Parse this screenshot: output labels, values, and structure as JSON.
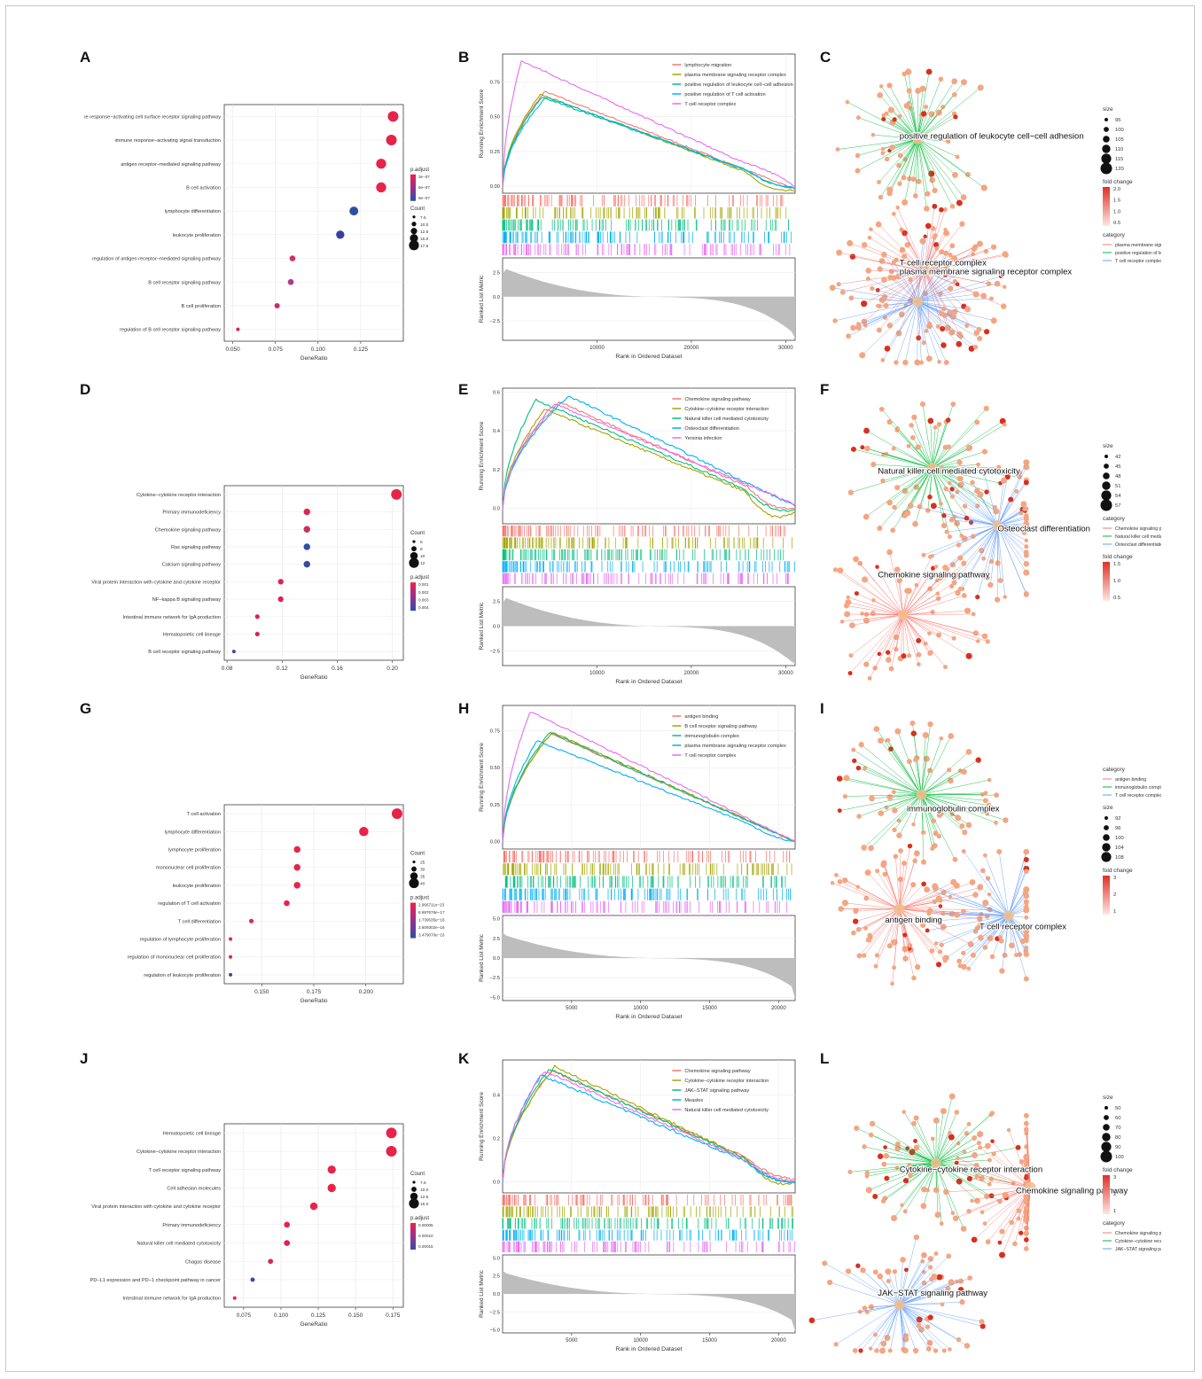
{
  "letters": [
    "A",
    "B",
    "C",
    "D",
    "E",
    "F",
    "G",
    "H",
    "I",
    "J",
    "K",
    "L"
  ],
  "chart_data": [
    {
      "id": "A",
      "type": "scatter",
      "subtype": "dotplot",
      "xlabel": "GeneRatio",
      "xlim": [
        0.045,
        0.15
      ],
      "xticks": [
        "0.050",
        "0.075",
        "0.100",
        "0.125"
      ],
      "xtick_values": [
        0.05,
        0.075,
        0.1,
        0.125
      ],
      "categories": [
        "immune response−activating cell surface receptor signaling pathway",
        "immune response−activating signal transduction",
        "antigen receptor−mediated signaling pathway",
        "B cell activation",
        "lymphocyte differentiation",
        "leukocyte proliferation",
        "regulation of antigen receptor−mediated signaling pathway",
        "B cell receptor signaling pathway",
        "B cell proliferation",
        "regulation of B cell receptor signaling pathway"
      ],
      "values": [
        0.144,
        0.143,
        0.137,
        0.137,
        0.121,
        0.113,
        0.085,
        0.084,
        0.076,
        0.053
      ],
      "counts": [
        19,
        19,
        18,
        18,
        16,
        15,
        11,
        11,
        10,
        7
      ],
      "colors": [
        "#e8234a",
        "#e8234a",
        "#e8234a",
        "#e8234a",
        "#2f4fa0",
        "#3a3f9e",
        "#d0306a",
        "#b03a8a",
        "#c82a6a",
        "#e02050"
      ],
      "legend_color_title": "p.adjust",
      "legend_color_ticks": [
        "3e−07",
        "6e−07",
        "9e−07"
      ],
      "legend_size_title": "Count",
      "legend_size_ticks": [
        "7.5",
        "10.0",
        "12.5",
        "15.0",
        "17.5"
      ]
    },
    {
      "id": "B",
      "type": "line",
      "subtype": "gsea",
      "ylabel": "Running Enrichment Score",
      "ylabel2": "Ranked List Metric",
      "xlabel": "Rank in Ordered Dataset",
      "xticks": [
        "10000",
        "20000",
        "30000"
      ],
      "xtick_values": [
        10000,
        20000,
        30000
      ],
      "xmax": 31000,
      "ylim": [
        -0.05,
        0.95
      ],
      "yticks": [
        "0.00",
        "0.25",
        "0.50",
        "0.75"
      ],
      "ytick_values": [
        0,
        0.25,
        0.5,
        0.75
      ],
      "metric_ticks": [
        "2.5",
        "0.0",
        "−2.5"
      ],
      "metric_values": [
        2.5,
        0,
        -2.5
      ],
      "metric_lim": [
        -4.5,
        4.0
      ],
      "series": [
        {
          "name": "lymphocyte migration",
          "color": "#f8766d",
          "peak": 0.68,
          "peak_x": 4500,
          "end": -0.02,
          "sag": 0.0
        },
        {
          "name": "plasma membrane signaling receptor complex",
          "color": "#a3a500",
          "peak": 0.66,
          "peak_x": 4000,
          "end": -0.03,
          "sag": 0.05
        },
        {
          "name": "positive regulation of leukocyte cell−cell adhesion",
          "color": "#00bf7d",
          "peak": 0.64,
          "peak_x": 4200,
          "end": -0.01,
          "sag": 0.03
        },
        {
          "name": "positive regulation of T cell activation",
          "color": "#00b0f6",
          "peak": 0.64,
          "peak_x": 4600,
          "end": -0.01,
          "sag": 0.03
        },
        {
          "name": "T cell receptor complex",
          "color": "#e76bf3",
          "peak": 0.9,
          "peak_x": 2000,
          "end": 0.0,
          "sag": -0.02
        }
      ]
    },
    {
      "id": "C",
      "type": "other",
      "subtype": "cnetplot",
      "category_terms": [
        "positive regulation of leukocyte cell−cell adhesion",
        "plasma membrane signaling receptor complex",
        "T cell receptor complex"
      ],
      "legend_size_title": "size",
      "legend_size_ticks": [
        "95",
        "100",
        "105",
        "110",
        "115",
        "120"
      ],
      "legend_fc_title": "fold change",
      "legend_fc_ticks": [
        "2.0",
        "1.5",
        "1.0",
        "0.5"
      ],
      "legend_cat_title": "category",
      "legend_cat_items": [
        "plasma membrane signaling receptor complex",
        "positive regulation of leukocyte cell−cell adhesion",
        "T cell receptor complex"
      ],
      "legend_cat_colors": [
        "#f8766d",
        "#00ba38",
        "#619cff"
      ]
    },
    {
      "id": "D",
      "type": "scatter",
      "subtype": "dotplot",
      "xlabel": "GeneRatio",
      "xlim": [
        0.078,
        0.208
      ],
      "xticks": [
        "0.08",
        "0.12",
        "0.16",
        "0.20"
      ],
      "xtick_values": [
        0.08,
        0.12,
        0.16,
        0.2
      ],
      "categories": [
        "Cytokine−cytokine receptor interaction",
        "Primary immunodeficiency",
        "Chemokine signaling pathway",
        "Ras signaling pathway",
        "Calcium signaling pathway",
        "Viral protein interaction with cytokine and cytokine receptor",
        "NF−kappa B signaling pathway",
        "Intestinal immune network for IgA production",
        "Hematopoietic cell lineage",
        "B cell receptor signaling pathway"
      ],
      "values": [
        0.203,
        0.138,
        0.138,
        0.138,
        0.138,
        0.119,
        0.119,
        0.102,
        0.102,
        0.085
      ],
      "counts": [
        12,
        8,
        8,
        8,
        8,
        7,
        7,
        6,
        6,
        5
      ],
      "colors": [
        "#e8234a",
        "#d8284f",
        "#c8305a",
        "#2f4fa0",
        "#3a4a9e",
        "#e02050",
        "#e02050",
        "#e02050",
        "#e02050",
        "#2f4fa0"
      ],
      "legend_size_title": "Count",
      "legend_size_ticks": [
        "6",
        "8",
        "10",
        "12"
      ],
      "legend_color_title": "p.adjust",
      "legend_color_ticks": [
        "0.001",
        "0.002",
        "0.003",
        "0.004"
      ]
    },
    {
      "id": "E",
      "type": "line",
      "subtype": "gsea",
      "ylabel": "Running Enrichment Score",
      "ylabel2": "Ranked List Metric",
      "xlabel": "Rank in Ordered Dataset",
      "xticks": [
        "10000",
        "20000",
        "30000"
      ],
      "xtick_values": [
        10000,
        20000,
        30000
      ],
      "xmax": 31000,
      "ylim": [
        -0.08,
        0.62
      ],
      "yticks": [
        "0.0",
        "0.2",
        "0.4",
        "0.6"
      ],
      "ytick_values": [
        0,
        0.2,
        0.4,
        0.6
      ],
      "metric_ticks": [
        "2.5",
        "0.0",
        "−2.5"
      ],
      "metric_values": [
        2.5,
        0,
        -2.5
      ],
      "metric_lim": [
        -4.0,
        4.0
      ],
      "series": [
        {
          "name": "Chemokine signaling pathway",
          "color": "#f8766d",
          "peak": 0.55,
          "peak_x": 6000,
          "end": 0.0,
          "sag": 0.04
        },
        {
          "name": "Cytokine−cytokine receptor interaction",
          "color": "#a3a500",
          "peak": 0.51,
          "peak_x": 4500,
          "end": -0.02,
          "sag": 0.07
        },
        {
          "name": "Natural killer cell mediated cytotoxicity",
          "color": "#00bf7d",
          "peak": 0.56,
          "peak_x": 3500,
          "end": -0.01,
          "sag": 0.04
        },
        {
          "name": "Osteoclast differentiation",
          "color": "#00b0f6",
          "peak": 0.58,
          "peak_x": 7000,
          "end": 0.01,
          "sag": 0.0
        },
        {
          "name": "Yersinia infection",
          "color": "#e76bf3",
          "peak": 0.54,
          "peak_x": 5500,
          "end": 0.02,
          "sag": 0.0
        }
      ]
    },
    {
      "id": "F",
      "type": "other",
      "subtype": "cnetplot",
      "category_terms": [
        "Natural killer cell mediated cytotoxicity",
        "Osteoclast differentiation",
        "Chemokine signaling pathway"
      ],
      "legend_size_title": "size",
      "legend_size_ticks": [
        "42",
        "45",
        "48",
        "51",
        "54",
        "57"
      ],
      "legend_cat_title": "category",
      "legend_cat_items": [
        "Chemokine signaling pathway",
        "Natural killer cell mediated cytotoxicity",
        "Osteoclast differentiation"
      ],
      "legend_cat_colors": [
        "#f8766d",
        "#00ba38",
        "#619cff"
      ],
      "legend_fc_title": "fold change",
      "legend_fc_ticks": [
        "1.5",
        "1.0",
        "0.5"
      ]
    },
    {
      "id": "G",
      "type": "scatter",
      "subtype": "dotplot",
      "xlabel": "GeneRatio",
      "xlim": [
        0.132,
        0.218
      ],
      "xticks": [
        "0.150",
        "0.175",
        "0.200"
      ],
      "xtick_values": [
        0.15,
        0.175,
        0.2
      ],
      "categories": [
        "T cell activation",
        "lymphocyte differentiation",
        "lymphocyte proliferation",
        "mononuclear cell proliferation",
        "leukocyte proliferation",
        "regulation of T cell activation",
        "T cell differentiation",
        "regulation of lymphocyte proliferation",
        "regulation of mononuclear cell proliferation",
        "regulation of leukocyte proliferation"
      ],
      "values": [
        0.215,
        0.199,
        0.167,
        0.167,
        0.167,
        0.162,
        0.145,
        0.135,
        0.135,
        0.135
      ],
      "counts": [
        44,
        41,
        35,
        35,
        35,
        33,
        30,
        28,
        28,
        28
      ],
      "colors": [
        "#e8234a",
        "#e8234a",
        "#e8234a",
        "#e8234a",
        "#e8234a",
        "#e8234a",
        "#e8234a",
        "#e8234a",
        "#d8284f",
        "#3050a0"
      ],
      "legend_size_title": "Count",
      "legend_size_ticks": [
        "25",
        "30",
        "35",
        "40"
      ],
      "legend_color_title": "p.adjust",
      "legend_color_ticks": [
        "2.966711e−23",
        "8.697676e−17",
        "1.739535e−16",
        "2.609302e−16",
        "3.479070e−16"
      ]
    },
    {
      "id": "H",
      "type": "line",
      "subtype": "gsea",
      "ylabel": "Running Enrichment Score",
      "ylabel2": "Ranked List Metric",
      "xlabel": "Rank in Ordered Dataset",
      "xticks": [
        "5000",
        "10000",
        "15000",
        "20000"
      ],
      "xtick_values": [
        5000,
        10000,
        15000,
        20000
      ],
      "xmax": 21200,
      "ylim": [
        -0.05,
        0.92
      ],
      "yticks": [
        "0.00",
        "0.25",
        "0.50",
        "0.75"
      ],
      "ytick_values": [
        0,
        0.25,
        0.5,
        0.75
      ],
      "metric_ticks": [
        "5.0",
        "2.5",
        "0.0",
        "−2.5",
        "−5.0"
      ],
      "metric_values": [
        5,
        2.5,
        0,
        -2.5,
        -5
      ],
      "metric_lim": [
        -5.4,
        5.4
      ],
      "series": [
        {
          "name": "antigen binding",
          "color": "#f8766d",
          "peak": 0.73,
          "peak_x": 3500,
          "end": 0.0,
          "sag": 0.0
        },
        {
          "name": "B cell receptor signaling pathway",
          "color": "#a3a500",
          "peak": 0.74,
          "peak_x": 3600,
          "end": 0.0,
          "sag": 0.0
        },
        {
          "name": "immunoglobulin complex",
          "color": "#00bf7d",
          "peak": 0.74,
          "peak_x": 3400,
          "end": 0.0,
          "sag": 0.0
        },
        {
          "name": "plasma membrane signaling receptor complex",
          "color": "#00b0f6",
          "peak": 0.68,
          "peak_x": 2500,
          "end": 0.0,
          "sag": 0.02
        },
        {
          "name": "T cell receptor complex",
          "color": "#e76bf3",
          "peak": 0.88,
          "peak_x": 2000,
          "end": 0.0,
          "sag": 0.0
        }
      ]
    },
    {
      "id": "I",
      "type": "other",
      "subtype": "cnetplot",
      "category_terms": [
        "immunoglobulin complex",
        "antigen binding",
        "T cell receptor complex"
      ],
      "legend_cat_title": "category",
      "legend_cat_items": [
        "antigen binding",
        "immunoglobulin complex",
        "T cell receptor complex"
      ],
      "legend_cat_colors": [
        "#f8766d",
        "#00ba38",
        "#619cff"
      ],
      "legend_size_title": "size",
      "legend_size_ticks": [
        "92",
        "96",
        "100",
        "104",
        "108"
      ],
      "legend_fc_title": "fold change",
      "legend_fc_ticks": [
        "3",
        "2",
        "1"
      ]
    },
    {
      "id": "J",
      "type": "scatter",
      "subtype": "dotplot",
      "xlabel": "GeneRatio",
      "xlim": [
        0.062,
        0.182
      ],
      "xticks": [
        "0.075",
        "0.100",
        "0.125",
        "0.150",
        "0.175"
      ],
      "xtick_values": [
        0.075,
        0.1,
        0.125,
        0.15,
        0.175
      ],
      "categories": [
        "Hematopoietic cell lineage",
        "Cytokine−cytokine receptor interaction",
        "T cell receptor signaling pathway",
        "Cell adhesion molecules",
        "Viral protein interaction with cytokine and cytokine receptor",
        "Primary immunodeficiency",
        "Natural killer cell mediated cytotoxicity",
        "Chagas disease",
        "PD−L1 expression and PD−1 checkpoint pathway in cancer",
        "Intestinal immune network for IgA production"
      ],
      "values": [
        0.174,
        0.174,
        0.134,
        0.134,
        0.122,
        0.104,
        0.104,
        0.093,
        0.081,
        0.069
      ],
      "counts": [
        15,
        15,
        12,
        12,
        11,
        9,
        9,
        8,
        7,
        6
      ],
      "colors": [
        "#e8234a",
        "#e8234a",
        "#e8234a",
        "#e8234a",
        "#e8234a",
        "#e8234a",
        "#e02050",
        "#d8284f",
        "#2f4fa0",
        "#e8234a"
      ],
      "legend_size_title": "Count",
      "legend_size_ticks": [
        "7.5",
        "10.0",
        "12.5",
        "15.0"
      ],
      "legend_color_title": "p.adjust",
      "legend_color_ticks": [
        "0.00005",
        "0.00010",
        "0.00015"
      ]
    },
    {
      "id": "K",
      "type": "line",
      "subtype": "gsea",
      "ylabel": "Running Enrichment Score",
      "ylabel2": "Ranked List Metric",
      "xlabel": "Rank in Ordered Dataset",
      "xticks": [
        "5000",
        "10000",
        "15000",
        "20000"
      ],
      "xtick_values": [
        5000,
        10000,
        15000,
        20000
      ],
      "xmax": 21200,
      "ylim": [
        -0.05,
        0.56
      ],
      "yticks": [
        "0.0",
        "0.2",
        "0.4"
      ],
      "ytick_values": [
        0,
        0.2,
        0.4
      ],
      "metric_ticks": [
        "5.0",
        "2.5",
        "0.0",
        "−2.5",
        "−5.0"
      ],
      "metric_values": [
        5,
        2.5,
        0,
        -2.5,
        -5
      ],
      "metric_lim": [
        -5.4,
        5.4
      ],
      "series": [
        {
          "name": "Chemokine signaling pathway",
          "color": "#f8766d",
          "peak": 0.51,
          "peak_x": 3600,
          "end": 0.01,
          "sag": 0.02
        },
        {
          "name": "Cytokine−cytokine receptor interaction",
          "color": "#a3a500",
          "peak": 0.53,
          "peak_x": 3800,
          "end": 0.0,
          "sag": 0.05
        },
        {
          "name": "JAK−STAT signaling pathway",
          "color": "#00bf7d",
          "peak": 0.52,
          "peak_x": 3400,
          "end": 0.0,
          "sag": 0.03
        },
        {
          "name": "Measles",
          "color": "#00b0f6",
          "peak": 0.49,
          "peak_x": 2800,
          "end": 0.0,
          "sag": 0.03
        },
        {
          "name": "Natural killer cell mediated cytotoxicity",
          "color": "#e76bf3",
          "peak": 0.51,
          "peak_x": 3000,
          "end": 0.0,
          "sag": 0.02
        }
      ]
    },
    {
      "id": "L",
      "type": "other",
      "subtype": "cnetplot",
      "category_terms": [
        "Cytokine−cytokine receptor interaction",
        "Chemokine signaling pathway",
        "JAK−STAT signaling pathway"
      ],
      "legend_size_title": "size",
      "legend_size_ticks": [
        "50",
        "60",
        "70",
        "80",
        "90",
        "100"
      ],
      "legend_fc_title": "fold change",
      "legend_fc_ticks": [
        "3",
        "2",
        "1"
      ],
      "legend_cat_title": "category",
      "legend_cat_items": [
        "Chemokine signaling pathway",
        "Cytokine−cytokine receptor interaction",
        "JAK−STAT signaling pathway"
      ],
      "legend_cat_colors": [
        "#f8766d",
        "#00ba38",
        "#619cff"
      ]
    }
  ]
}
